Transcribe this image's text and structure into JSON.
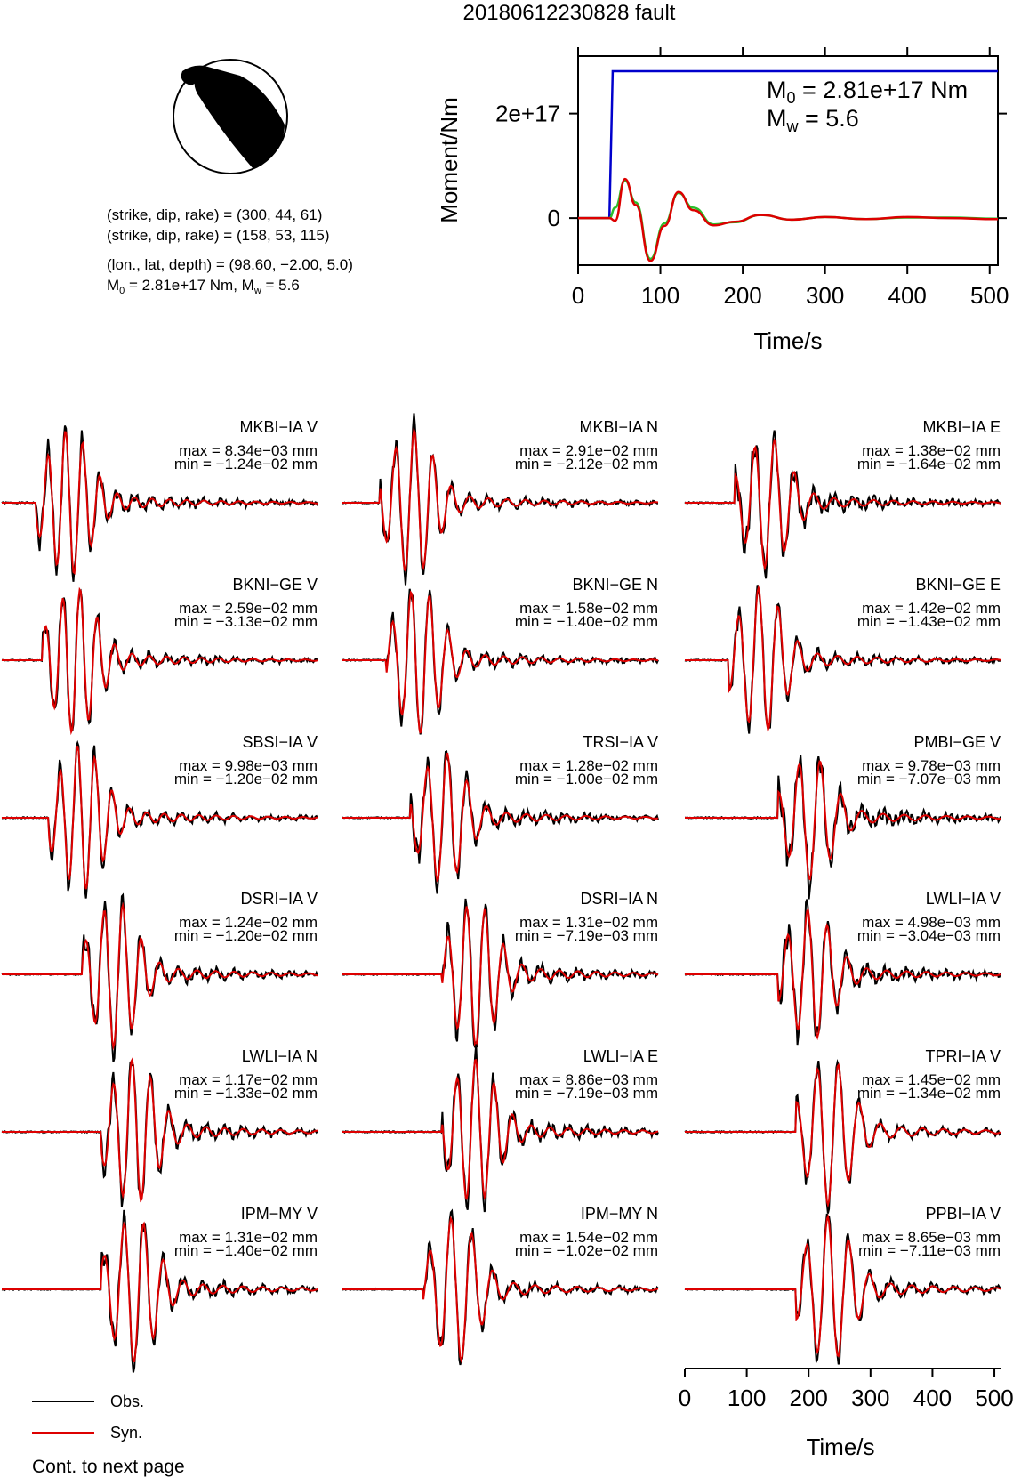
{
  "title": "20180612230828 fault",
  "mechanism": {
    "lines": [
      "(strike, dip, rake) = (300, 44, 61)",
      "(strike, dip, rake) = (158, 53, 115)",
      "(lon., lat, depth) = (98.60, −2.00, 5.0)"
    ],
    "moment_line": {
      "m0": "2.81e+17 Nm",
      "mw": "5.6"
    }
  },
  "chart_data": [
    {
      "type": "line",
      "name": "moment-rate",
      "ylabel": "Moment/Nm",
      "xlabel": "Time/s",
      "xlim": [
        0,
        510
      ],
      "ylim": [
        -9e+16,
        3.1e+17
      ],
      "xticks": [
        "0",
        "100",
        "200",
        "300",
        "400",
        "500"
      ],
      "yticks": [
        "0",
        "2e+17"
      ],
      "annotation": {
        "m0": "2.81e+17 Nm",
        "mw": "5.6"
      },
      "series": [
        {
          "color": "#0000cc",
          "x": [
            0,
            38,
            42,
            510
          ],
          "y": [
            0,
            0,
            2.81e+17,
            2.81e+17
          ]
        },
        {
          "color": "#2bbf2b",
          "x": [
            0,
            38,
            45,
            57,
            70,
            88,
            105,
            122,
            140,
            165,
            190,
            222,
            260,
            300,
            350,
            400,
            450,
            510
          ],
          "y": [
            0,
            0,
            2e+16,
            7.2e+16,
            3e+16,
            -7.8e+16,
            -1e+16,
            4.8e+16,
            2e+16,
            -1.2e+16,
            -8000000000000000.0,
            6000000000000000.0,
            -3000000000000000.0,
            2000000000000000.0,
            -2000000000000000.0,
            1000000000000000.0,
            1000000000000000.0,
            -1000000000000000.0
          ]
        },
        {
          "color": "#dd0000",
          "x": [
            0,
            38,
            45,
            57,
            70,
            88,
            105,
            122,
            140,
            165,
            190,
            222,
            260,
            300,
            350,
            400,
            450,
            510
          ],
          "y": [
            0,
            0,
            -5000000000000000.0,
            7.5e+16,
            2.5e+16,
            -8.2e+16,
            -1.5e+16,
            5e+16,
            1.5e+16,
            -1.4e+16,
            -7000000000000000.0,
            6000000000000000.0,
            -3000000000000000.0,
            2000000000000000.0,
            -2000000000000000.0,
            2000000000000000.0,
            0.0,
            -2000000000000000.0
          ]
        }
      ]
    },
    {
      "type": "line",
      "name": "waveforms",
      "xlabel": "Time/s",
      "xlim": [
        0,
        510
      ],
      "xticks": [
        "0",
        "100",
        "200",
        "300",
        "400",
        "500"
      ],
      "legend": [
        {
          "label": "Obs.",
          "color": "#000000"
        },
        {
          "label": "Syn.",
          "color": "#dd0000"
        }
      ],
      "panels": [
        {
          "station": "MKBI−IA V",
          "max": "8.34e−03 mm",
          "min": "−1.24e−02 mm",
          "onset": 55,
          "period": 28,
          "amp": 1.0,
          "wobble": 0.5,
          "seed": 1
        },
        {
          "station": "MKBI−IA N",
          "max": "2.91e−02 mm",
          "min": "−2.12e−02 mm",
          "onset": 60,
          "period": 30,
          "amp": 1.0,
          "wobble": 0.4,
          "seed": 2
        },
        {
          "station": "MKBI−IA E",
          "max": "1.38e−02 mm",
          "min": "−1.64e−02 mm",
          "onset": 80,
          "period": 32,
          "amp": 0.9,
          "wobble": 0.6,
          "seed": 3
        },
        {
          "station": "BKNI−GE V",
          "max": "2.59e−02 mm",
          "min": "−3.13e−02 mm",
          "onset": 65,
          "period": 28,
          "amp": 1.0,
          "wobble": 0.4,
          "seed": 4
        },
        {
          "station": "BKNI−GE N",
          "max": "1.58e−02 mm",
          "min": "−1.40e−02 mm",
          "onset": 70,
          "period": 30,
          "amp": 1.0,
          "wobble": 0.4,
          "seed": 5
        },
        {
          "station": "BKNI−GE E",
          "max": "1.42e−02 mm",
          "min": "−1.43e−02 mm",
          "onset": 70,
          "period": 32,
          "amp": 1.0,
          "wobble": 0.4,
          "seed": 6
        },
        {
          "station": "SBSI−IA V",
          "max": "9.98e−03 mm",
          "min": "−1.20e−02 mm",
          "onset": 75,
          "period": 28,
          "amp": 1.0,
          "wobble": 0.4,
          "seed": 7
        },
        {
          "station": "TRSI−IA V",
          "max": "1.28e−02 mm",
          "min": "−1.00e−02 mm",
          "onset": 110,
          "period": 32,
          "amp": 0.9,
          "wobble": 0.5,
          "seed": 8
        },
        {
          "station": "PMBI−GE V",
          "max": "9.78e−03 mm",
          "min": "−7.07e−03 mm",
          "onset": 150,
          "period": 34,
          "amp": 0.85,
          "wobble": 0.7,
          "seed": 9
        },
        {
          "station": "DSRI−IA V",
          "max": "1.24e−02 mm",
          "min": "−1.20e−02 mm",
          "onset": 130,
          "period": 30,
          "amp": 1.0,
          "wobble": 0.5,
          "seed": 10
        },
        {
          "station": "DSRI−IA N",
          "max": "1.31e−02 mm",
          "min": "−7.19e−03 mm",
          "onset": 160,
          "period": 30,
          "amp": 1.0,
          "wobble": 0.5,
          "seed": 11
        },
        {
          "station": "LWLI−IA V",
          "max": "4.98e−03 mm",
          "min": "−3.04e−03 mm",
          "onset": 150,
          "period": 32,
          "amp": 0.9,
          "wobble": 0.6,
          "seed": 12
        },
        {
          "station": "LWLI−IA N",
          "max": "1.17e−02 mm",
          "min": "−1.33e−02 mm",
          "onset": 160,
          "period": 30,
          "amp": 1.0,
          "wobble": 0.5,
          "seed": 13
        },
        {
          "station": "LWLI−IA E",
          "max": "8.86e−03 mm",
          "min": "−7.19e−03 mm",
          "onset": 160,
          "period": 30,
          "amp": 1.0,
          "wobble": 0.5,
          "seed": 14
        },
        {
          "station": "TPRI−IA V",
          "max": "1.45e−02 mm",
          "min": "−1.34e−02 mm",
          "onset": 180,
          "period": 34,
          "amp": 1.0,
          "wobble": 0.3,
          "seed": 15
        },
        {
          "station": "IPM−MY V",
          "max": "1.31e−02 mm",
          "min": "−1.40e−02 mm",
          "onset": 160,
          "period": 32,
          "amp": 1.0,
          "wobble": 0.5,
          "seed": 16
        },
        {
          "station": "IPM−MY N",
          "max": "1.54e−02 mm",
          "min": "−1.02e−02 mm",
          "onset": 130,
          "period": 34,
          "amp": 1.0,
          "wobble": 0.4,
          "seed": 17
        },
        {
          "station": "PPBI−IA V",
          "max": "8.65e−03 mm",
          "min": "−7.11e−03 mm",
          "onset": 180,
          "period": 34,
          "amp": 1.0,
          "wobble": 0.4,
          "seed": 18
        }
      ]
    }
  ],
  "footer": {
    "cont": "Cont. to next page"
  }
}
